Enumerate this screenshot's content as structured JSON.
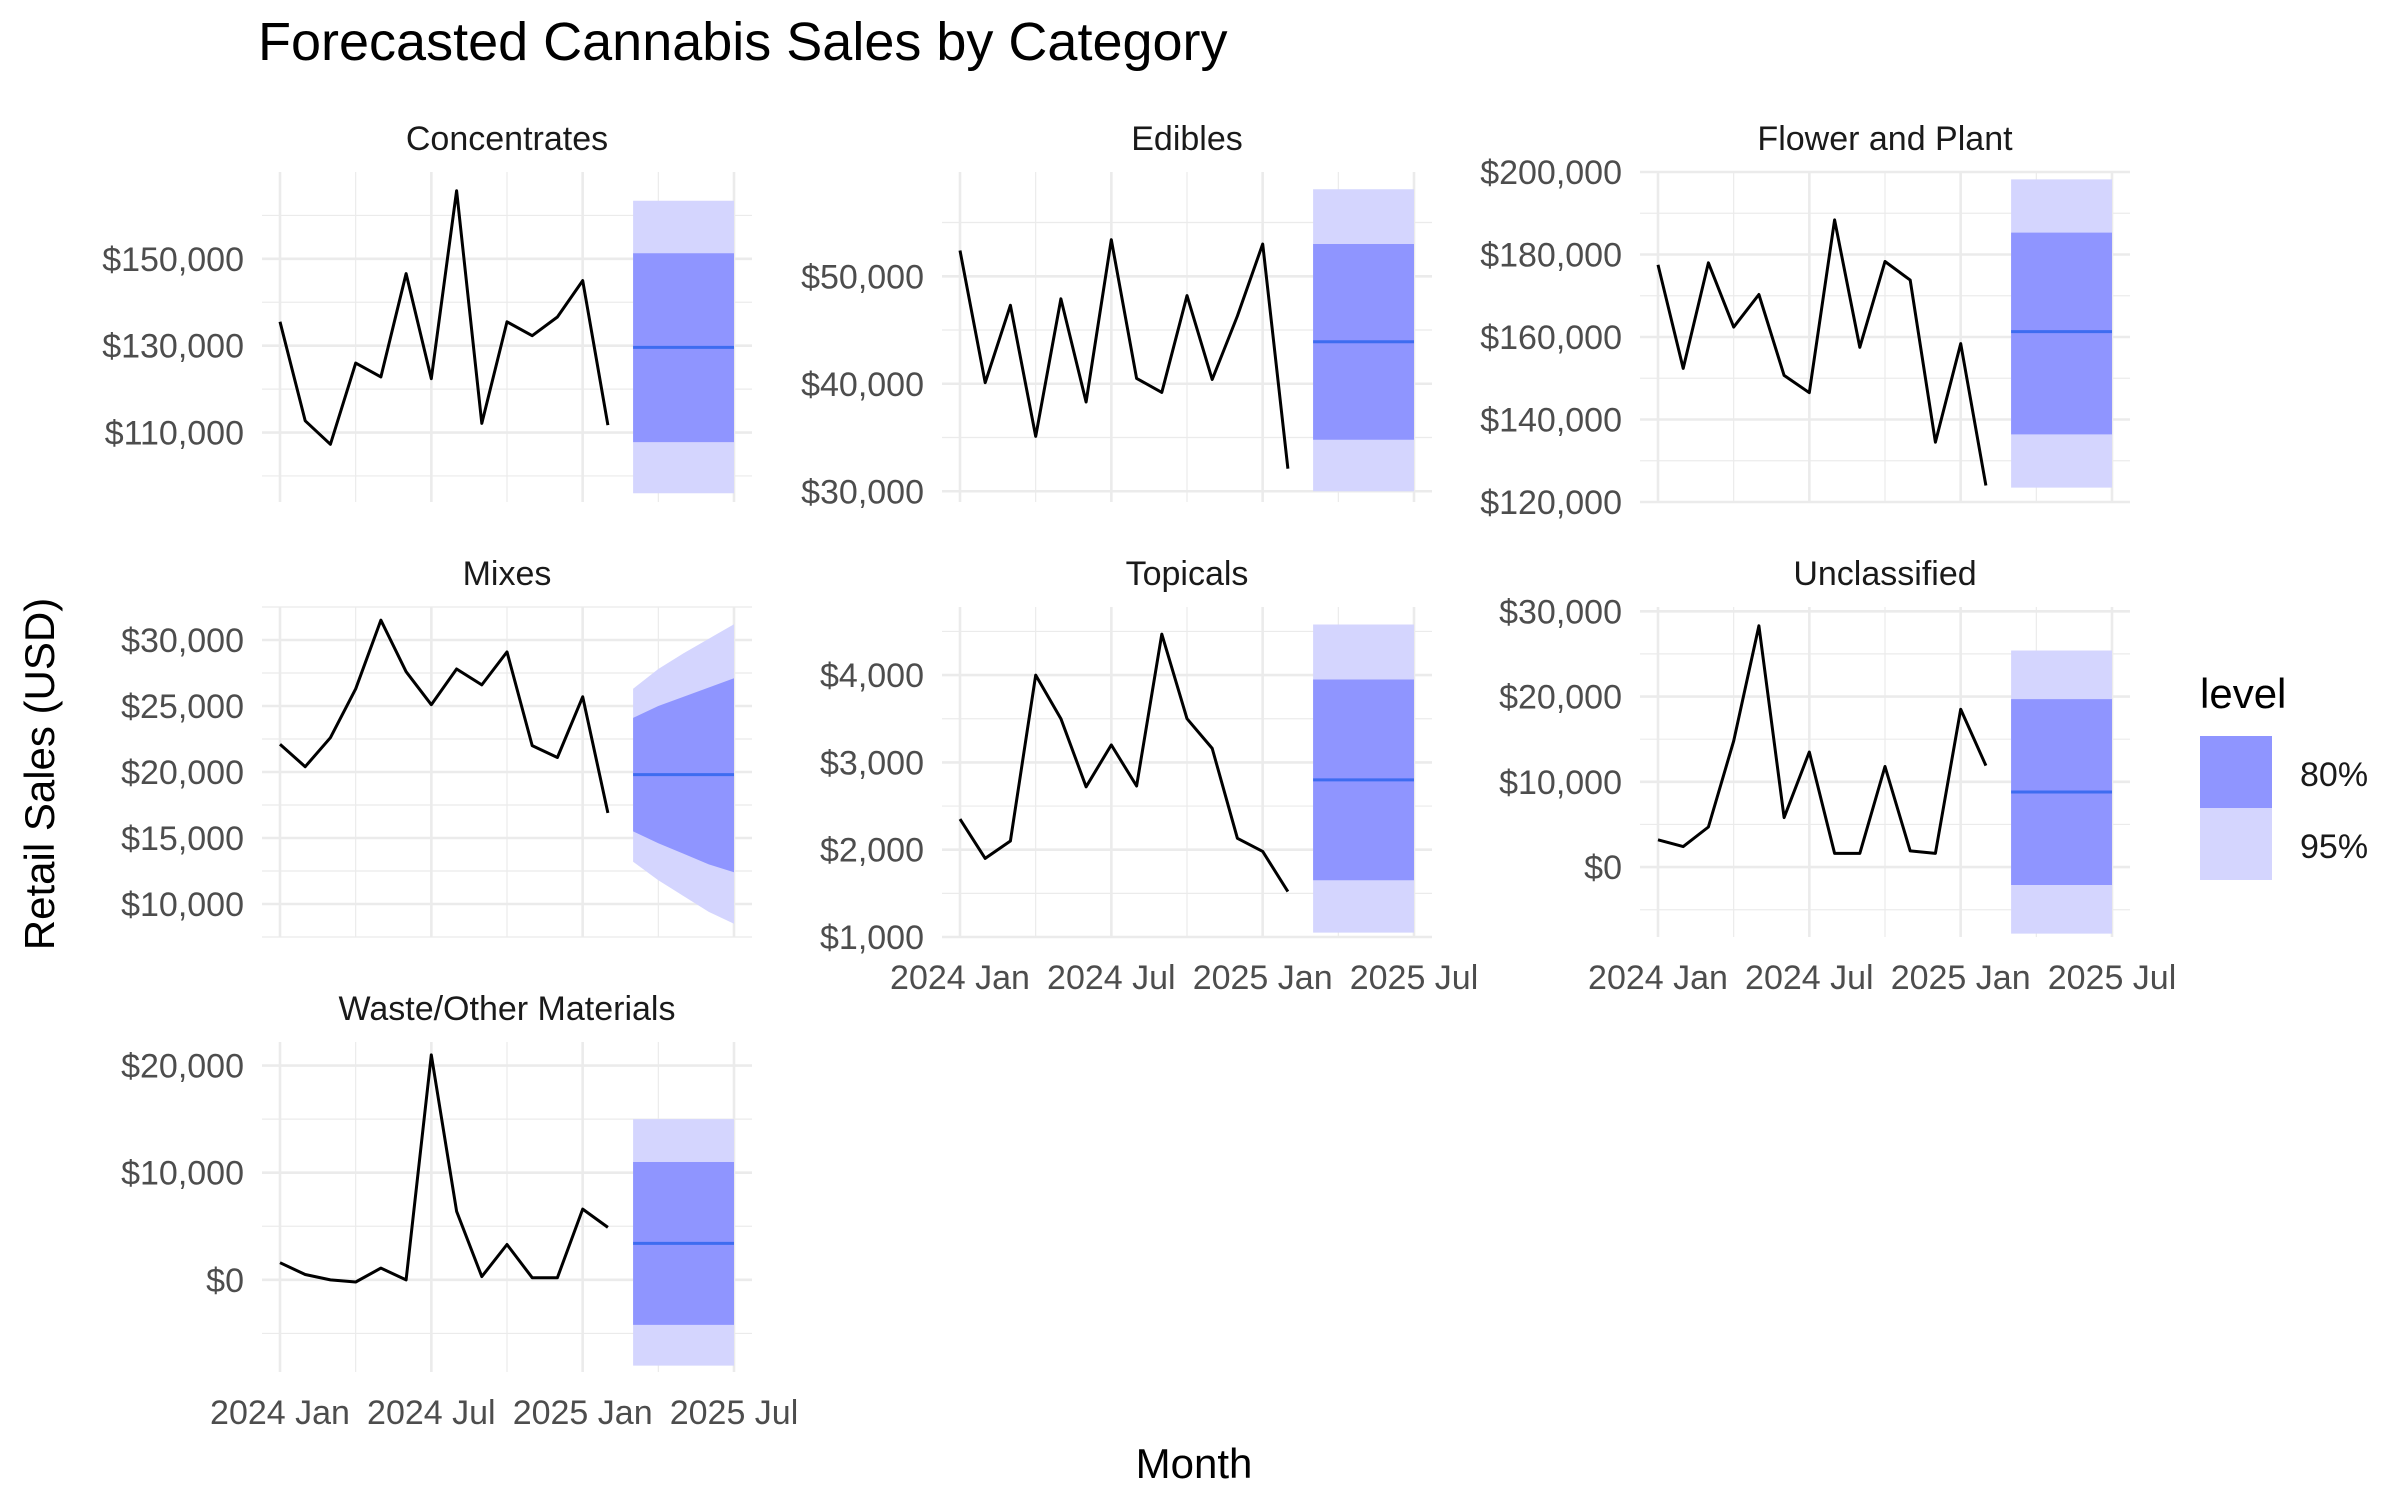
{
  "chart_data": {
    "type": "line",
    "title": "Forecasted Cannabis Sales by Category",
    "xlabel": "Month",
    "ylabel": "Retail Sales (USD)",
    "x_ticks": [
      "2024 Jan",
      "2024 Jul",
      "2025 Jan",
      "2025 Jul"
    ],
    "grid": true,
    "legend": {
      "title": "level",
      "position": "right",
      "items": [
        {
          "label": "80%",
          "color": "#8f95ff"
        },
        {
          "label": "95%",
          "color": "#d4d5fe"
        }
      ]
    },
    "colors": {
      "history": "#000000",
      "forecast_mean": "#3e6cf0",
      "band_80": "#8f95ff",
      "band_95": "#d4d5fe",
      "grid": "#ebebeb"
    },
    "history_months": [
      "2024-01",
      "2024-02",
      "2024-03",
      "2024-04",
      "2024-05",
      "2024-06",
      "2024-07",
      "2024-08",
      "2024-09",
      "2024-10",
      "2024-11",
      "2024-12",
      "2025-01",
      "2025-02"
    ],
    "forecast_months": [
      "2025-03",
      "2025-04",
      "2025-05",
      "2025-06",
      "2025-07"
    ],
    "panels": [
      {
        "name": "Concentrates",
        "history": [
          135500,
          112700,
          107300,
          126000,
          122800,
          146600,
          122400,
          165700,
          112100,
          135500,
          132300,
          136600,
          145000,
          111700
        ],
        "forecast": {
          "mean": [
            129600,
            129600,
            129600,
            129600,
            129600
          ],
          "lo80": [
            107800,
            107800,
            107800,
            107800,
            107800
          ],
          "hi80": [
            151300,
            151300,
            151300,
            151300,
            151300
          ],
          "lo95": [
            96000,
            96000,
            96000,
            96000,
            96000
          ],
          "hi95": [
            163400,
            163400,
            163400,
            163400,
            163400
          ]
        },
        "y_ticks": [
          110000,
          130000,
          150000
        ],
        "y_tick_labels": [
          "$110,000",
          "$130,000",
          "$150,000"
        ],
        "ylim": [
          94000,
          170000
        ]
      },
      {
        "name": "Edibles",
        "history": [
          52400,
          40100,
          47300,
          35100,
          47900,
          38300,
          53400,
          40500,
          39200,
          48200,
          40400,
          46300,
          53000,
          32100
        ],
        "forecast": {
          "mean": [
            43900,
            43900,
            43900,
            43900,
            43900
          ],
          "lo80": [
            34800,
            34800,
            34800,
            34800,
            34800
          ],
          "hi80": [
            53000,
            53000,
            53000,
            53000,
            53000
          ],
          "lo95": [
            30000,
            30000,
            30000,
            30000,
            30000
          ],
          "hi95": [
            58100,
            58100,
            58100,
            58100,
            58100
          ]
        },
        "y_ticks": [
          30000,
          40000,
          50000
        ],
        "y_tick_labels": [
          "$30,000",
          "$40,000",
          "$50,000"
        ],
        "ylim": [
          29000,
          59700
        ]
      },
      {
        "name": "Flower and Plant",
        "history": [
          177500,
          152400,
          178000,
          162400,
          170300,
          150700,
          146500,
          188400,
          157500,
          178300,
          173800,
          134500,
          158400,
          124000
        ],
        "forecast": {
          "mean": [
            161300,
            161300,
            161300,
            161300,
            161300
          ],
          "lo80": [
            136400,
            136400,
            136400,
            136400,
            136400
          ],
          "hi80": [
            185300,
            185300,
            185300,
            185300,
            185300
          ],
          "lo95": [
            123500,
            123500,
            123500,
            123500,
            123500
          ],
          "hi95": [
            198200,
            198200,
            198200,
            198200,
            198200
          ]
        },
        "y_ticks": [
          120000,
          140000,
          160000,
          180000,
          200000
        ],
        "y_tick_labels": [
          "$120,000",
          "$140,000",
          "$160,000",
          "$180,000",
          "$200,000"
        ],
        "ylim": [
          120000,
          200000
        ]
      },
      {
        "name": "Mixes",
        "history": [
          22100,
          20400,
          22600,
          26300,
          31500,
          27600,
          25100,
          27800,
          26600,
          29100,
          22000,
          21100,
          25700,
          16900
        ],
        "forecast": {
          "mean": [
            19800,
            19800,
            19800,
            19800,
            19800
          ],
          "lo80": [
            15500,
            14600,
            13800,
            13000,
            12400
          ],
          "hi80": [
            24100,
            25000,
            25700,
            26400,
            27100
          ],
          "lo95": [
            13200,
            11800,
            10600,
            9400,
            8500
          ],
          "hi95": [
            26300,
            27800,
            29000,
            30100,
            31200
          ]
        },
        "y_ticks": [
          10000,
          15000,
          20000,
          25000,
          30000
        ],
        "y_tick_labels": [
          "$10,000",
          "$15,000",
          "$20,000",
          "$25,000",
          "$30,000"
        ],
        "ylim": [
          7500,
          32500
        ]
      },
      {
        "name": "Topicals",
        "history": [
          2350,
          1900,
          2100,
          4000,
          3500,
          2720,
          3200,
          2730,
          4470,
          3500,
          3160,
          2130,
          1980,
          1520
        ],
        "forecast": {
          "mean": [
            2800,
            2800,
            2800,
            2800,
            2800
          ],
          "lo80": [
            1650,
            1650,
            1650,
            1650,
            1650
          ],
          "hi80": [
            3950,
            3950,
            3950,
            3950,
            3950
          ],
          "lo95": [
            1050,
            1050,
            1050,
            1050,
            1050
          ],
          "hi95": [
            4580,
            4580,
            4580,
            4580,
            4580
          ]
        },
        "y_ticks": [
          1000,
          2000,
          3000,
          4000
        ],
        "y_tick_labels": [
          "$1,000",
          "$2,000",
          "$3,000",
          "$4,000"
        ],
        "ylim": [
          1000,
          4780
        ]
      },
      {
        "name": "Unclassified",
        "history": [
          3200,
          2400,
          4700,
          14800,
          28300,
          5800,
          13500,
          1600,
          1600,
          11800,
          1900,
          1600,
          18500,
          11900
        ],
        "forecast": {
          "mean": [
            8800,
            8800,
            8800,
            8800,
            8800
          ],
          "lo80": [
            -2100,
            -2100,
            -2100,
            -2100,
            -2100
          ],
          "hi80": [
            19700,
            19700,
            19700,
            19700,
            19700
          ],
          "lo95": [
            -7800,
            -7800,
            -7800,
            -7800,
            -7800
          ],
          "hi95": [
            25400,
            25400,
            25400,
            25400,
            25400
          ]
        },
        "y_ticks": [
          0,
          10000,
          20000,
          30000
        ],
        "y_tick_labels": [
          "$0",
          "$10,000",
          "$20,000",
          "$30,000"
        ],
        "ylim": [
          -8200,
          30500
        ]
      },
      {
        "name": "Waste/Other Materials",
        "history": [
          1600,
          500,
          0,
          -200,
          1100,
          0,
          21000,
          6400,
          300,
          3300,
          200,
          200,
          6600,
          4900
        ],
        "forecast": {
          "mean": [
            3400,
            3400,
            3400,
            3400,
            3400
          ],
          "lo80": [
            -4200,
            -4200,
            -4200,
            -4200,
            -4200
          ],
          "hi80": [
            11000,
            11000,
            11000,
            11000,
            11000
          ],
          "lo95": [
            -8000,
            -8000,
            -8000,
            -8000,
            -8000
          ],
          "hi95": [
            15000,
            15000,
            15000,
            15000,
            15000
          ]
        },
        "y_ticks": [
          0,
          10000,
          20000
        ],
        "y_tick_labels": [
          "$0",
          "$10,000",
          "$20,000"
        ],
        "ylim": [
          -8600,
          22200
        ]
      }
    ]
  }
}
